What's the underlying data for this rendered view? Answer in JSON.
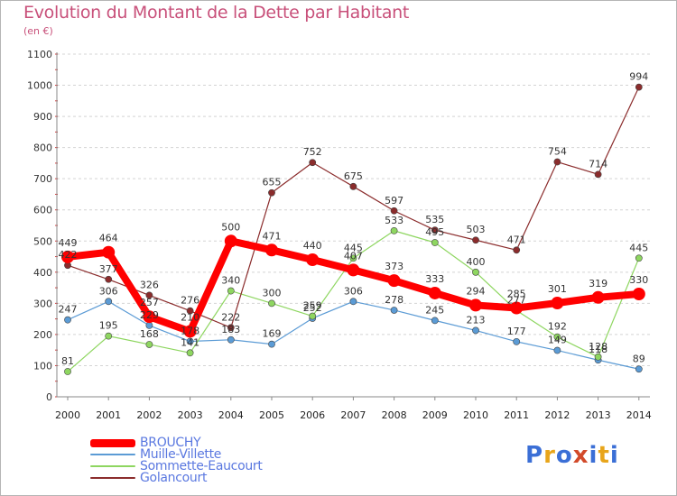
{
  "chart_data": {
    "type": "line",
    "title": "Evolution du Montant de la Dette par Habitant",
    "subtitle": "(en €)",
    "x": [
      "2000",
      "2001",
      "2002",
      "2003",
      "2004",
      "2005",
      "2006",
      "2007",
      "2008",
      "2009",
      "2010",
      "2011",
      "2012",
      "2013",
      "2014"
    ],
    "ylim": [
      0,
      1100
    ],
    "yticks": [
      0,
      100,
      200,
      300,
      400,
      500,
      600,
      700,
      800,
      900,
      1000,
      1100
    ],
    "grid": "horizontal dashed",
    "legend_position": "bottom-left",
    "series": [
      {
        "name": "BROUCHY",
        "color": "#ff0000",
        "emphasis": true,
        "values": [
          449,
          464,
          257,
          210,
          500,
          471,
          440,
          407,
          373,
          333,
          294,
          285,
          301,
          319,
          330
        ],
        "labels": [
          "449",
          "464",
          "257",
          "210",
          "500",
          "471",
          "440",
          "407",
          "373",
          "333",
          "294",
          "285",
          "301",
          "319",
          "330"
        ]
      },
      {
        "name": "Muille-Villette",
        "color": "#5b9bd5",
        "emphasis": false,
        "values": [
          247,
          306,
          229,
          178,
          183,
          169,
          252,
          306,
          278,
          245,
          213,
          177,
          149,
          118,
          89
        ],
        "labels": [
          "247",
          "306",
          "229",
          "178",
          "183",
          "169",
          "252",
          "306",
          "278",
          "245",
          "213",
          "177",
          "149",
          "118",
          "89"
        ]
      },
      {
        "name": "Sommette-Eaucourt",
        "color": "#8ed660",
        "emphasis": false,
        "values": [
          81,
          195,
          168,
          141,
          340,
          300,
          259,
          445,
          533,
          495,
          400,
          277,
          192,
          128,
          445
        ],
        "labels": [
          "81",
          "195",
          "168",
          "141",
          "340",
          "300",
          "259",
          "445",
          "533",
          "495",
          "400",
          "277",
          "192",
          "128",
          "445"
        ]
      },
      {
        "name": "Golancourt",
        "color": "#8b2c2c",
        "emphasis": false,
        "values": [
          422,
          377,
          326,
          276,
          222,
          655,
          752,
          675,
          597,
          535,
          503,
          471,
          754,
          714,
          994
        ],
        "labels": [
          "422",
          "377",
          "326",
          "276",
          "222",
          "655",
          "752",
          "675",
          "597",
          "535",
          "503",
          "471",
          "754",
          "714",
          "994"
        ]
      }
    ]
  },
  "logo": {
    "letters": [
      "P",
      "r",
      "o",
      "x",
      "i",
      "t",
      "i"
    ],
    "colors": [
      "#3b6fd6",
      "#e8a51a",
      "#3b6fd6",
      "#d24a2a",
      "#3b6fd6",
      "#e8a51a",
      "#3b6fd6"
    ]
  }
}
